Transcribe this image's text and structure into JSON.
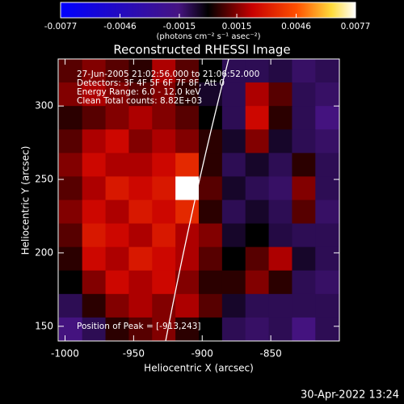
{
  "chart_data": {
    "type": "heatmap",
    "title": "Reconstructed RHESSI Image",
    "xlabel": "Heliocentric X (arcsec)",
    "ylabel": "Heliocentric Y (arcsec)",
    "colorbar_label": "(photons cm⁻² s⁻¹ asec⁻²)",
    "clim": [
      -0.0077,
      0.0077
    ],
    "colorbar_ticks": [
      -0.0077,
      -0.0046,
      -0.0015,
      0.0015,
      0.0046,
      0.0077
    ],
    "annotations": [
      "27-Jun-2005 21:02:56.000 to 21:06:52.000",
      "Detectors: 3F 4F 5F 6F 7F 8F, Att 0",
      "Energy Range: 6.0 - 12.0 keV",
      "Clean     Total counts: 8.82E+03"
    ],
    "peak_label": "Position of Peak = [-913,243]",
    "timestamp": "30-Apr-2022 13:24",
    "xlim": [
      -1005,
      -800
    ],
    "ylim": [
      140,
      332
    ],
    "xticks": [
      -1000,
      -950,
      -900,
      -850
    ],
    "yticks": [
      150,
      200,
      250,
      300
    ],
    "x": [
      -996,
      -979,
      -962,
      -945,
      -928,
      -911,
      -894,
      -877,
      -860,
      -843,
      -826,
      -809
    ],
    "y": [
      324,
      308,
      292,
      276,
      260,
      244,
      228,
      212,
      196,
      180,
      164,
      148
    ],
    "z": [
      [
        0.001,
        0.0015,
        0.001,
        0.0005,
        0.002,
        0.001,
        0.0,
        -0.001,
        -0.001,
        -0.0008,
        -0.0012,
        -0.001
      ],
      [
        0.0015,
        0.002,
        0.0015,
        0.001,
        0.0015,
        0.0005,
        -0.0005,
        -0.001,
        0.002,
        0.001,
        -0.001,
        -0.0012
      ],
      [
        0.0005,
        0.001,
        0.0015,
        0.002,
        0.0015,
        0.001,
        0.0,
        -0.001,
        0.0025,
        0.0005,
        -0.001,
        -0.0015
      ],
      [
        0.001,
        0.002,
        0.0025,
        0.0015,
        0.002,
        0.0015,
        0.0005,
        -0.0005,
        0.0015,
        -0.0005,
        -0.001,
        -0.0012
      ],
      [
        0.0015,
        0.0025,
        0.002,
        0.002,
        0.0025,
        0.0035,
        0.0005,
        -0.001,
        -0.0005,
        -0.001,
        0.0005,
        -0.001
      ],
      [
        0.001,
        0.002,
        0.003,
        0.0025,
        0.003,
        0.0077,
        0.001,
        -0.0005,
        -0.001,
        -0.0012,
        0.0015,
        -0.001
      ],
      [
        0.0015,
        0.0025,
        0.002,
        0.003,
        0.0025,
        0.0035,
        0.0005,
        -0.001,
        -0.0005,
        -0.001,
        0.001,
        -0.0012
      ],
      [
        0.001,
        0.003,
        0.0025,
        0.002,
        0.003,
        0.002,
        0.0015,
        -0.0005,
        0.0,
        -0.0008,
        -0.001,
        -0.001
      ],
      [
        0.0005,
        0.0025,
        0.002,
        0.003,
        0.0025,
        0.002,
        0.001,
        0.0,
        0.001,
        0.002,
        -0.0005,
        -0.001
      ],
      [
        0.0,
        0.0015,
        0.0025,
        0.002,
        0.0025,
        0.0015,
        0.0005,
        0.0005,
        0.0015,
        0.0005,
        -0.001,
        -0.0012
      ],
      [
        -0.001,
        0.0005,
        0.0015,
        0.002,
        0.0015,
        0.002,
        0.001,
        -0.0005,
        -0.001,
        -0.001,
        -0.001,
        -0.001
      ],
      [
        -0.0015,
        -0.001,
        0.0005,
        0.001,
        0.0015,
        0.0005,
        0.0,
        -0.001,
        -0.0012,
        -0.001,
        -0.0015,
        -0.001
      ]
    ]
  }
}
